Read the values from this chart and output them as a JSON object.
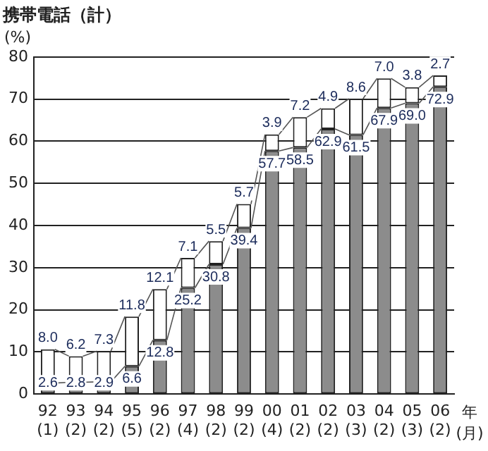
{
  "chart_data": {
    "type": "bar",
    "title": "携帯電話（計）",
    "ylabel": "(%)",
    "xlabel": "年\n(月)",
    "categories": [
      "92\n(1)",
      "93\n(2)",
      "94\n(2)",
      "95\n(5)",
      "96\n(2)",
      "97\n(4)",
      "98\n(2)",
      "99\n(2)",
      "00\n(4)",
      "01\n(2)",
      "02\n(2)",
      "03\n(3)",
      "04\n(2)",
      "05\n(3)",
      "06\n(2)"
    ],
    "stacked": true,
    "series": [
      {
        "color": "#8c8c8c",
        "values": [
          2.6,
          2.8,
          2.9,
          6.6,
          12.8,
          25.2,
          30.8,
          39.4,
          57.7,
          58.5,
          62.9,
          61.5,
          67.9,
          69.0,
          72.9
        ],
        "value_labels": [
          "2.6",
          "2.8",
          "2.9",
          "6.6",
          "12.8",
          "25.2",
          "30.8",
          "39.4",
          "57.7",
          "58.5",
          "62.9",
          "61.5",
          "67.9",
          "69.0",
          "72.9"
        ]
      },
      {
        "color": "#ffffff",
        "values": [
          8.0,
          6.2,
          7.3,
          11.8,
          12.1,
          7.1,
          5.5,
          5.7,
          3.9,
          7.2,
          4.9,
          8.6,
          7.0,
          3.8,
          2.7
        ],
        "value_labels": [
          "8.0",
          "6.2",
          "7.3",
          "11.8",
          "12.1",
          "7.1",
          "5.5",
          "5.7",
          "3.9",
          "7.2",
          "4.9",
          "8.6",
          "7.0",
          "3.8",
          "2.7"
        ]
      }
    ],
    "ylim": [
      0,
      80
    ],
    "yticks": [
      0,
      10,
      20,
      30,
      40,
      50,
      60,
      70,
      80
    ],
    "grid": "y",
    "legend": false
  }
}
